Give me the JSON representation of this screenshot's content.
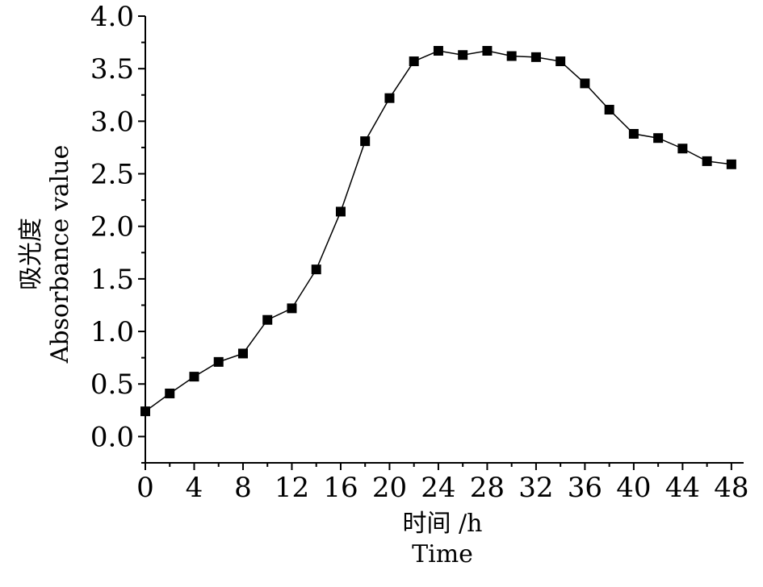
{
  "chart_data": {
    "type": "line",
    "xlabel_cn": "时间 /h",
    "xlabel_en": "Time",
    "ylabel_cn": "吸光度",
    "ylabel_en": "Absorbance value",
    "xlim": [
      0,
      49
    ],
    "ylim": [
      -0.25,
      4.0
    ],
    "x_ticks": [
      0,
      4,
      8,
      12,
      16,
      20,
      24,
      28,
      32,
      36,
      40,
      44,
      48
    ],
    "x_tick_labels": [
      "0",
      "4",
      "8",
      "12",
      "16",
      "20",
      "24",
      "28",
      "32",
      "36",
      "40",
      "44",
      "48"
    ],
    "y_ticks": [
      0.0,
      0.5,
      1.0,
      1.5,
      2.0,
      2.5,
      3.0,
      3.5,
      4.0
    ],
    "y_tick_labels": [
      "0.0",
      "0.5",
      "1.0",
      "1.5",
      "2.0",
      "2.5",
      "3.0",
      "3.5",
      "4.0"
    ],
    "series": [
      {
        "marker": "square",
        "color": "#000000",
        "x": [
          0,
          2,
          4,
          6,
          8,
          10,
          12,
          14,
          16,
          18,
          20,
          22,
          24,
          26,
          28,
          30,
          32,
          34,
          36,
          38,
          40,
          42,
          44,
          46,
          48
        ],
        "y": [
          0.24,
          0.41,
          0.57,
          0.71,
          0.79,
          1.11,
          1.22,
          1.59,
          2.14,
          2.81,
          3.22,
          3.57,
          3.67,
          3.63,
          3.67,
          3.62,
          3.61,
          3.57,
          3.36,
          3.11,
          2.88,
          2.84,
          2.74,
          2.62,
          2.59
        ]
      }
    ]
  }
}
